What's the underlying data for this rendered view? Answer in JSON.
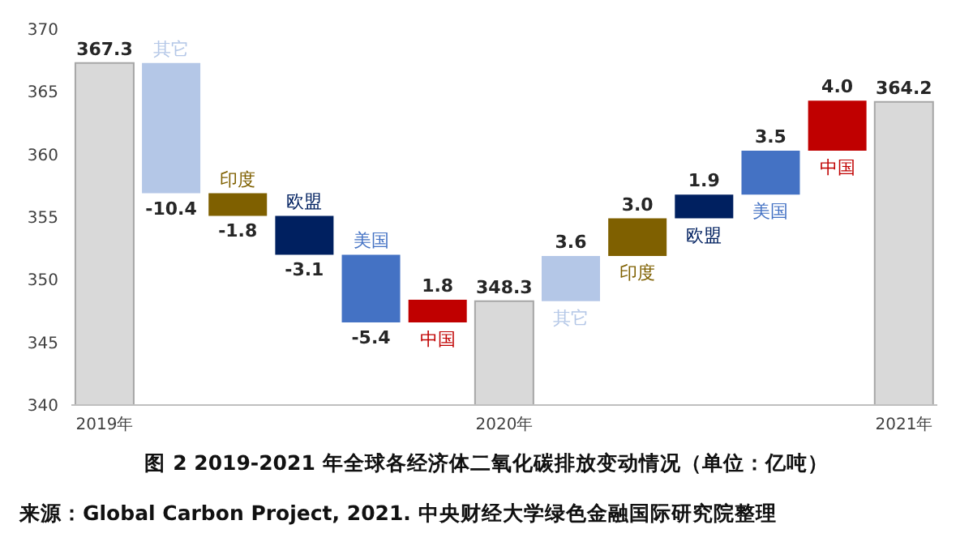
{
  "chart_data": {
    "type": "bar",
    "title": "图 2 2019-2021 年全球各经济体二氧化碳排放变动情况（单位：亿吨）",
    "categories": [
      "2019年",
      "其它",
      "印度",
      "欧盟",
      "美国",
      "中国",
      "2020年",
      "其它",
      "印度",
      "欧盟",
      "美国",
      "中国",
      "2021年"
    ],
    "values": [
      367.3,
      -10.4,
      -1.8,
      -3.1,
      -5.4,
      1.8,
      348.3,
      3.6,
      3.0,
      1.9,
      3.5,
      4.0,
      364.2
    ],
    "base": [
      null,
      367.3,
      356.9,
      355.1,
      352.0,
      346.6,
      null,
      348.3,
      351.9,
      354.9,
      356.8,
      360.3,
      null
    ],
    "colors": [
      "#d9d9d9",
      "#b4c7e7",
      "#7f6000",
      "#002060",
      "#4472c4",
      "#c00000",
      "#d9d9d9",
      "#b4c7e7",
      "#7f6000",
      "#002060",
      "#4472c4",
      "#c00000",
      "#d9d9d9"
    ],
    "ylim": [
      340,
      370
    ],
    "yticks": [
      340,
      345,
      350,
      355,
      360,
      365,
      370
    ],
    "value_labels": [
      "367.3",
      "-10.4",
      "-1.8",
      "-3.1",
      "-5.4",
      "1.8",
      "348.3",
      "3.6",
      "3.0",
      "1.9",
      "3.5",
      "4.0",
      "364.2"
    ],
    "annotations": [
      "来源：Global Carbon Project, 2021. 中央财经大学绿色金融国际研究院整理"
    ]
  }
}
